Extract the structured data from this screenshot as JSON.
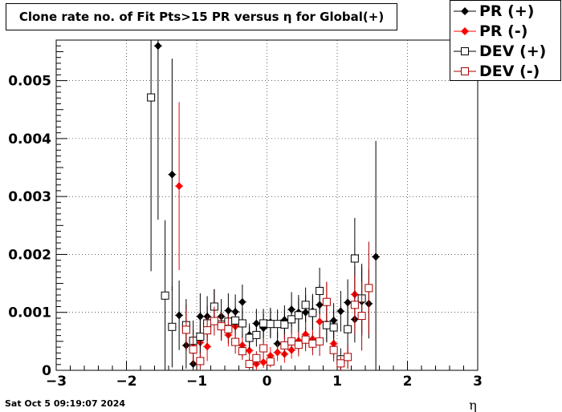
{
  "chart_data": {
    "type": "scatter",
    "title": "Clone rate no. of Fit Pts>15 PR versus η for Global(+)",
    "xlabel": "η",
    "ylabel": "",
    "xlim": [
      -3,
      3
    ],
    "ylim": [
      0,
      0.0057
    ],
    "xticks": [
      "−3",
      "−2",
      "−1",
      "0",
      "1",
      "2",
      "3"
    ],
    "xtick_values": [
      -3,
      -2,
      -1,
      0,
      1,
      2,
      3
    ],
    "yticks": [
      "0",
      "0.001",
      "0.002",
      "0.003",
      "0.004",
      "0.005"
    ],
    "ytick_values": [
      0,
      0.001,
      0.002,
      0.003,
      0.004,
      0.005
    ],
    "grid": true,
    "legend_position": "top-right",
    "series": [
      {
        "name": "PR (+)",
        "marker": "filled-diamond",
        "color": "#000000",
        "points": [
          {
            "x": -1.55,
            "y": 0.0056,
            "err": 0.003
          },
          {
            "x": -1.35,
            "y": 0.00338,
            "err": 0.002
          },
          {
            "x": -1.25,
            "y": 0.00095,
            "err": 0.0006
          },
          {
            "x": -1.15,
            "y": 0.00043,
            "err": 0.0004
          },
          {
            "x": -1.05,
            "y": 0.00011,
            "err": 0.00011
          },
          {
            "x": -0.95,
            "y": 0.00093,
            "err": 0.0004
          },
          {
            "x": -0.85,
            "y": 0.00093,
            "err": 0.00035
          },
          {
            "x": -0.75,
            "y": 0.0011,
            "err": 0.0003
          },
          {
            "x": -0.65,
            "y": 0.00093,
            "err": 0.0003
          },
          {
            "x": -0.55,
            "y": 0.00103,
            "err": 0.0003
          },
          {
            "x": -0.45,
            "y": 0.00101,
            "err": 0.0003
          },
          {
            "x": -0.35,
            "y": 0.00118,
            "err": 0.0003
          },
          {
            "x": -0.25,
            "y": 0.00061,
            "err": 0.0002
          },
          {
            "x": -0.15,
            "y": 0.00081,
            "err": 0.00025
          },
          {
            "x": -0.05,
            "y": 0.00073,
            "err": 0.00025
          },
          {
            "x": 0.05,
            "y": 0.00083,
            "err": 0.00025
          },
          {
            "x": 0.15,
            "y": 0.00046,
            "err": 0.0002
          },
          {
            "x": 0.25,
            "y": 0.00087,
            "err": 0.00025
          },
          {
            "x": 0.35,
            "y": 0.00105,
            "err": 0.0003
          },
          {
            "x": 0.45,
            "y": 0.001,
            "err": 0.0003
          },
          {
            "x": 0.55,
            "y": 0.001,
            "err": 0.0003
          },
          {
            "x": 0.65,
            "y": 0.00102,
            "err": 0.0003
          },
          {
            "x": 0.75,
            "y": 0.00113,
            "err": 0.00035
          },
          {
            "x": 0.85,
            "y": 0.0008,
            "err": 0.0003
          },
          {
            "x": 0.95,
            "y": 0.00086,
            "err": 0.0003
          },
          {
            "x": 1.05,
            "y": 0.00102,
            "err": 0.00035
          },
          {
            "x": 1.15,
            "y": 0.00117,
            "err": 0.0004
          },
          {
            "x": 1.25,
            "y": 0.00088,
            "err": 0.0004
          },
          {
            "x": 1.35,
            "y": 0.00119,
            "err": 0.0006
          },
          {
            "x": 1.45,
            "y": 0.00115,
            "err": 0.0006
          },
          {
            "x": 1.55,
            "y": 0.00196,
            "err": 0.002
          }
        ]
      },
      {
        "name": "PR (-)",
        "marker": "filled-diamond",
        "color": "#ff0000",
        "points": [
          {
            "x": -1.25,
            "y": 0.00318,
            "err": 0.00145
          },
          {
            "x": -1.15,
            "y": 0.00074,
            "err": 0.0004
          },
          {
            "x": -1.05,
            "y": 0.0004,
            "err": 0.0003
          },
          {
            "x": -0.95,
            "y": 0.00048,
            "err": 0.0003
          },
          {
            "x": -0.85,
            "y": 0.00041,
            "err": 0.00025
          },
          {
            "x": -0.75,
            "y": 0.0011,
            "err": 0.0003
          },
          {
            "x": -0.65,
            "y": 0.00076,
            "err": 0.00025
          },
          {
            "x": -0.55,
            "y": 0.00061,
            "err": 0.0002
          },
          {
            "x": -0.45,
            "y": 0.00076,
            "err": 0.00025
          },
          {
            "x": -0.35,
            "y": 0.00043,
            "err": 0.0002
          },
          {
            "x": -0.25,
            "y": 0.00034,
            "err": 0.00015
          },
          {
            "x": -0.15,
            "y": 0.00011,
            "err": 0.0001
          },
          {
            "x": -0.05,
            "y": 0.00014,
            "err": 0.0001
          },
          {
            "x": 0.05,
            "y": 0.00025,
            "err": 0.00015
          },
          {
            "x": 0.15,
            "y": 0.00031,
            "err": 0.00015
          },
          {
            "x": 0.25,
            "y": 0.00028,
            "err": 0.00015
          },
          {
            "x": 0.35,
            "y": 0.00035,
            "err": 0.00015
          },
          {
            "x": 0.45,
            "y": 0.00051,
            "err": 0.0002
          },
          {
            "x": 0.55,
            "y": 0.00062,
            "err": 0.00025
          },
          {
            "x": 0.65,
            "y": 0.00054,
            "err": 0.0002
          },
          {
            "x": 0.75,
            "y": 0.00084,
            "err": 0.0003
          },
          {
            "x": 0.85,
            "y": 0.00116,
            "err": 0.00035
          },
          {
            "x": 0.95,
            "y": 0.00046,
            "err": 0.00025
          },
          {
            "x": 1.05,
            "y": 0.00011,
            "err": 0.00011
          },
          {
            "x": 1.15,
            "y": 0.00023,
            "err": 0.0002
          },
          {
            "x": 1.25,
            "y": 0.00131,
            "err": 0.0005
          }
        ]
      },
      {
        "name": "DEV (+)",
        "marker": "open-square",
        "color": "#000000",
        "points": [
          {
            "x": -1.65,
            "y": 0.00471,
            "err": 0.003
          },
          {
            "x": -1.45,
            "y": 0.00129,
            "err": 0.0013
          },
          {
            "x": -1.35,
            "y": 0.00075,
            "err": 0.0007
          },
          {
            "x": -1.15,
            "y": 0.00078,
            "err": 0.00045
          },
          {
            "x": -1.05,
            "y": 0.00051,
            "err": 0.00035
          },
          {
            "x": -0.95,
            "y": 0.00058,
            "err": 0.0003
          },
          {
            "x": -0.85,
            "y": 0.00081,
            "err": 0.0003
          },
          {
            "x": -0.75,
            "y": 0.0011,
            "err": 0.0003
          },
          {
            "x": -0.65,
            "y": 0.00079,
            "err": 0.00025
          },
          {
            "x": -0.55,
            "y": 0.00084,
            "err": 0.00025
          },
          {
            "x": -0.45,
            "y": 0.00086,
            "err": 0.00025
          },
          {
            "x": -0.35,
            "y": 0.00081,
            "err": 0.00025
          },
          {
            "x": -0.25,
            "y": 0.00056,
            "err": 0.0002
          },
          {
            "x": -0.15,
            "y": 0.00061,
            "err": 0.0002
          },
          {
            "x": -0.05,
            "y": 0.00081,
            "err": 0.00025
          },
          {
            "x": 0.05,
            "y": 0.0008,
            "err": 0.00025
          },
          {
            "x": 0.15,
            "y": 0.0008,
            "err": 0.00025
          },
          {
            "x": 0.25,
            "y": 0.00079,
            "err": 0.00025
          },
          {
            "x": 0.35,
            "y": 0.00088,
            "err": 0.00025
          },
          {
            "x": 0.45,
            "y": 0.00095,
            "err": 0.0003
          },
          {
            "x": 0.55,
            "y": 0.00113,
            "err": 0.0003
          },
          {
            "x": 0.65,
            "y": 0.00099,
            "err": 0.0003
          },
          {
            "x": 0.75,
            "y": 0.00137,
            "err": 0.0004
          },
          {
            "x": 0.85,
            "y": 0.00078,
            "err": 0.0003
          },
          {
            "x": 0.95,
            "y": 0.00074,
            "err": 0.0003
          },
          {
            "x": 1.05,
            "y": 0.00019,
            "err": 0.00019
          },
          {
            "x": 1.15,
            "y": 0.00071,
            "err": 0.0004
          },
          {
            "x": 1.25,
            "y": 0.00193,
            "err": 0.0007
          },
          {
            "x": 1.35,
            "y": 0.00124,
            "err": 0.0006
          }
        ]
      },
      {
        "name": "DEV (-)",
        "marker": "open-square",
        "color": "#aa0000",
        "points": [
          {
            "x": -1.15,
            "y": 0.0007,
            "err": 0.00035
          },
          {
            "x": -1.05,
            "y": 0.00036,
            "err": 0.00025
          },
          {
            "x": -0.95,
            "y": 0.00016,
            "err": 0.00015
          },
          {
            "x": -0.85,
            "y": 0.00069,
            "err": 0.00025
          },
          {
            "x": -0.75,
            "y": 0.00085,
            "err": 0.00025
          },
          {
            "x": -0.65,
            "y": 0.00076,
            "err": 0.00025
          },
          {
            "x": -0.55,
            "y": 0.00071,
            "err": 0.00025
          },
          {
            "x": -0.45,
            "y": 0.00049,
            "err": 0.0002
          },
          {
            "x": -0.35,
            "y": 0.00033,
            "err": 0.00015
          },
          {
            "x": -0.25,
            "y": 0.00011,
            "err": 0.0001
          },
          {
            "x": -0.15,
            "y": 0.00021,
            "err": 0.00012
          },
          {
            "x": -0.05,
            "y": 0.00038,
            "err": 0.00015
          },
          {
            "x": 0.05,
            "y": 0.00015,
            "err": 0.0001
          },
          {
            "x": 0.25,
            "y": 0.00043,
            "err": 0.0002
          },
          {
            "x": 0.35,
            "y": 0.0005,
            "err": 0.0002
          },
          {
            "x": 0.45,
            "y": 0.00044,
            "err": 0.0002
          },
          {
            "x": 0.55,
            "y": 0.00053,
            "err": 0.0002
          },
          {
            "x": 0.65,
            "y": 0.00046,
            "err": 0.0002
          },
          {
            "x": 0.75,
            "y": 0.0005,
            "err": 0.00025
          },
          {
            "x": 0.85,
            "y": 0.00118,
            "err": 0.00035
          },
          {
            "x": 0.95,
            "y": 0.00035,
            "err": 0.0002
          },
          {
            "x": 1.05,
            "y": 0.00012,
            "err": 0.00012
          },
          {
            "x": 1.15,
            "y": 0.00023,
            "err": 0.0002
          },
          {
            "x": 1.25,
            "y": 0.00113,
            "err": 0.0005
          },
          {
            "x": 1.35,
            "y": 0.00094,
            "err": 0.0006
          },
          {
            "x": 1.45,
            "y": 0.00142,
            "err": 0.0008
          }
        ]
      }
    ]
  },
  "footer": {
    "timestamp": "Sat Oct  5 09:19:07 2024"
  }
}
